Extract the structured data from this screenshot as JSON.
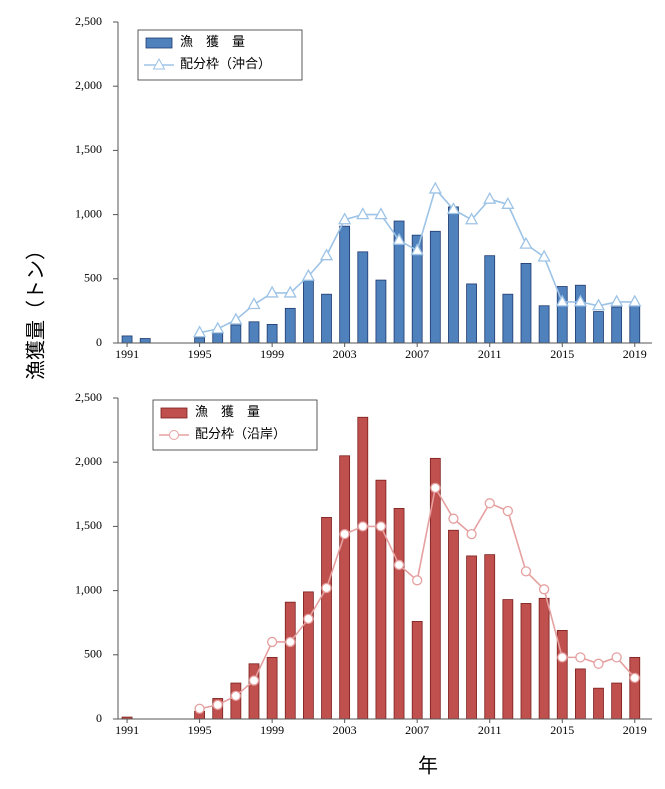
{
  "y_axis_label": "漁獲量（トン）",
  "x_axis_label": "年",
  "chart_data": [
    {
      "type": "bar-line",
      "legend": "upper left",
      "x": [
        1991,
        1992,
        1993,
        1994,
        1995,
        1996,
        1997,
        1998,
        1999,
        2000,
        2001,
        2002,
        2003,
        2004,
        2005,
        2006,
        2007,
        2008,
        2009,
        2010,
        2011,
        2012,
        2013,
        2014,
        2015,
        2016,
        2017,
        2018,
        2019
      ],
      "xlim": [
        1990.5,
        2019.95
      ],
      "xticks": [
        1991,
        1995,
        1999,
        2003,
        2007,
        2011,
        2015,
        2019
      ],
      "ylim": [
        0,
        2500
      ],
      "yticks": [
        0,
        500,
        {
          "value": 1000,
          "label": "1,000"
        },
        {
          "value": 1500,
          "label": "1,500"
        },
        {
          "value": 2000,
          "label": "2,000"
        },
        {
          "value": 2500,
          "label": "2,500"
        }
      ],
      "series": [
        {
          "name": "漁　獲　量",
          "kind": "bar",
          "color": "#4f81bd",
          "edge": "#1f3a6e",
          "values": [
            55,
            35,
            0,
            0,
            40,
            75,
            140,
            165,
            145,
            270,
            490,
            380,
            910,
            710,
            490,
            950,
            840,
            870,
            1060,
            460,
            680,
            380,
            620,
            290,
            440,
            450,
            245,
            280,
            290
          ]
        },
        {
          "name": "配分枠（沖合）",
          "kind": "line",
          "marker": "triangle",
          "color": "#9dc3e6",
          "values": [
            null,
            null,
            null,
            null,
            80,
            110,
            180,
            300,
            390,
            390,
            520,
            680,
            960,
            1000,
            1000,
            800,
            720,
            1200,
            1040,
            960,
            1120,
            1080,
            770,
            670,
            320,
            320,
            290,
            320,
            320
          ]
        }
      ]
    },
    {
      "type": "bar-line",
      "legend": "upper left",
      "x": [
        1991,
        1992,
        1993,
        1994,
        1995,
        1996,
        1997,
        1998,
        1999,
        2000,
        2001,
        2002,
        2003,
        2004,
        2005,
        2006,
        2007,
        2008,
        2009,
        2010,
        2011,
        2012,
        2013,
        2014,
        2015,
        2016,
        2017,
        2018,
        2019
      ],
      "xlim": [
        1990.5,
        2019.95
      ],
      "xticks": [
        1991,
        1995,
        1999,
        2003,
        2007,
        2011,
        2015,
        2019
      ],
      "ylim": [
        0,
        2500
      ],
      "yticks": [
        0,
        500,
        {
          "value": 1000,
          "label": "1,000"
        },
        {
          "value": 1500,
          "label": "1,500"
        },
        {
          "value": 2000,
          "label": "2,000"
        },
        {
          "value": 2500,
          "label": "2,500"
        }
      ],
      "series": [
        {
          "name": "漁　獲　量",
          "kind": "bar",
          "color": "#c0504d",
          "edge": "#7a1f1d",
          "values": [
            15,
            0,
            0,
            0,
            60,
            160,
            280,
            430,
            480,
            910,
            990,
            1570,
            2050,
            2350,
            1860,
            1640,
            760,
            2030,
            1470,
            1270,
            1280,
            930,
            900,
            940,
            690,
            390,
            240,
            280,
            480
          ]
        },
        {
          "name": "配分枠（沿岸）",
          "kind": "line",
          "marker": "circle",
          "color": "#e6a0a0",
          "values": [
            null,
            null,
            null,
            null,
            80,
            110,
            180,
            300,
            600,
            600,
            780,
            1020,
            1440,
            1500,
            1500,
            1200,
            1080,
            1800,
            1560,
            1440,
            1680,
            1620,
            1150,
            1010,
            480,
            480,
            430,
            480,
            320
          ]
        }
      ]
    }
  ]
}
